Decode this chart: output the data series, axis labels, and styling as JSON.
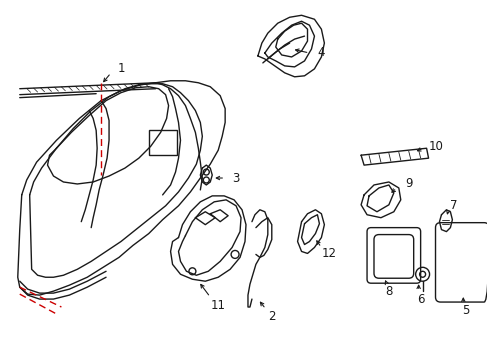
{
  "bg_color": "#ffffff",
  "line_color": "#1a1a1a",
  "red_color": "#cc0000",
  "lw": 1.0,
  "font_size": 8.5,
  "figsize": [
    4.89,
    3.6
  ],
  "dpi": 100,
  "xlim": [
    0,
    489
  ],
  "ylim": [
    0,
    360
  ]
}
